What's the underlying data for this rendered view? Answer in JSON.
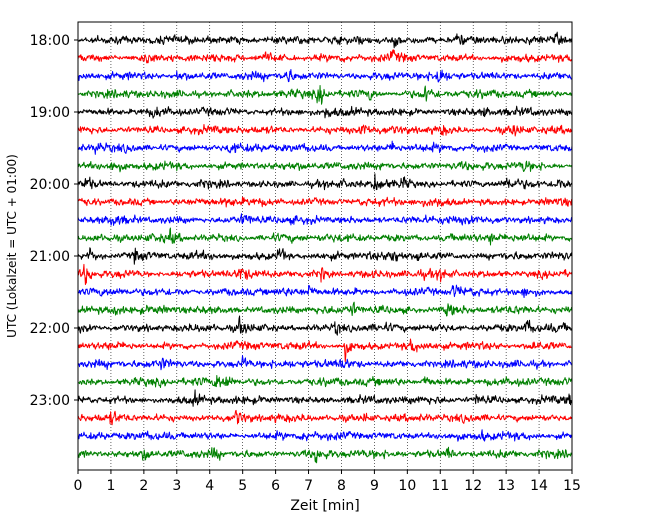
{
  "chart_data": {
    "type": "line",
    "title": "",
    "xlabel": "Zeit  [min]",
    "ylabel": "UTC (Lokalzeit = UTC + 01:00)",
    "xlim": [
      0,
      15
    ],
    "x_ticks": [
      "0",
      "1",
      "2",
      "3",
      "4",
      "5",
      "6",
      "7",
      "8",
      "9",
      "10",
      "11",
      "12",
      "13",
      "14",
      "15"
    ],
    "y_tick_labels": [
      "18:00",
      "19:00",
      "20:00",
      "21:00",
      "22:00",
      "23:00"
    ],
    "grid": "vertical dotted at each minute",
    "legend": "none",
    "trace_colors": [
      "#000000",
      "#ff0000",
      "#0000ff",
      "#008000"
    ],
    "traces_per_hour": 4,
    "minutes_per_trace": 15,
    "series": [
      {
        "start": "18:00",
        "color": "#000000",
        "events": [
          [
            9.6,
            0.5
          ],
          [
            11.5,
            0.4
          ],
          [
            14.5,
            0.4
          ],
          [
            3.5,
            0.35
          ]
        ]
      },
      {
        "start": "18:15",
        "color": "#ff0000",
        "events": [
          [
            2.0,
            0.6
          ],
          [
            5.6,
            0.4
          ],
          [
            9.5,
            0.4
          ]
        ]
      },
      {
        "start": "18:30",
        "color": "#0000ff",
        "events": [
          [
            6.3,
            0.9
          ],
          [
            10.9,
            1.0
          ],
          [
            3.0,
            0.35
          ]
        ]
      },
      {
        "start": "18:45",
        "color": "#008000",
        "events": [
          [
            7.3,
            1.0
          ],
          [
            8.8,
            0.5
          ],
          [
            10.5,
            0.8
          ]
        ]
      },
      {
        "start": "19:00",
        "color": "#000000",
        "events": [
          [
            2.3,
            0.4
          ],
          [
            7.5,
            0.4
          ],
          [
            12.3,
            0.4
          ]
        ]
      },
      {
        "start": "19:15",
        "color": "#ff0000",
        "events": [
          [
            8.6,
            0.6
          ],
          [
            13.2,
            0.5
          ],
          [
            11.0,
            0.4
          ]
        ]
      },
      {
        "start": "19:30",
        "color": "#0000ff",
        "events": [
          [
            0.5,
            0.6
          ],
          [
            4.6,
            0.5
          ],
          [
            9.5,
            0.5
          ]
        ]
      },
      {
        "start": "19:45",
        "color": "#008000",
        "events": [
          [
            1.0,
            0.4
          ],
          [
            9.2,
            0.5
          ],
          [
            13.5,
            0.5
          ]
        ]
      },
      {
        "start": "20:00",
        "color": "#000000",
        "events": [
          [
            0.2,
            0.7
          ],
          [
            9.0,
            0.9
          ],
          [
            13.0,
            0.6
          ],
          [
            14.5,
            0.5
          ],
          [
            9.8,
            0.5
          ]
        ]
      },
      {
        "start": "20:15",
        "color": "#ff0000",
        "events": [
          [
            4.5,
            0.5
          ],
          [
            10.8,
            0.4
          ]
        ]
      },
      {
        "start": "20:30",
        "color": "#0000ff",
        "events": [
          [
            5.0,
            0.5
          ],
          [
            11.2,
            0.4
          ],
          [
            1.0,
            0.35
          ]
        ]
      },
      {
        "start": "20:45",
        "color": "#008000",
        "events": [
          [
            2.8,
            0.5
          ],
          [
            12.5,
            0.5
          ]
        ]
      },
      {
        "start": "21:00",
        "color": "#000000",
        "events": [
          [
            0.3,
            0.6
          ],
          [
            1.7,
            0.6
          ],
          [
            6.1,
            1.0
          ],
          [
            9.5,
            0.7
          ],
          [
            10.3,
            0.6
          ]
        ]
      },
      {
        "start": "21:15",
        "color": "#ff0000",
        "events": [
          [
            0.2,
            0.9
          ],
          [
            4.9,
            0.6
          ],
          [
            7.4,
            0.6
          ],
          [
            11.0,
            0.5
          ]
        ]
      },
      {
        "start": "21:30",
        "color": "#0000ff",
        "events": [
          [
            7.0,
            0.5
          ],
          [
            11.4,
            0.5
          ],
          [
            13.5,
            0.4
          ]
        ]
      },
      {
        "start": "21:45",
        "color": "#008000",
        "events": [
          [
            1.1,
            0.6
          ],
          [
            8.3,
            0.6
          ],
          [
            11.2,
            0.6
          ]
        ]
      },
      {
        "start": "22:00",
        "color": "#000000",
        "events": [
          [
            4.9,
            0.7
          ],
          [
            7.8,
            0.6
          ],
          [
            13.6,
            0.8
          ]
        ]
      },
      {
        "start": "22:15",
        "color": "#ff0000",
        "events": [
          [
            8.1,
            1.0
          ],
          [
            10.1,
            0.5
          ],
          [
            13.8,
            0.5
          ]
        ]
      },
      {
        "start": "22:30",
        "color": "#0000ff",
        "events": [
          [
            5.0,
            0.6
          ],
          [
            2.5,
            0.4
          ],
          [
            8.0,
            0.4
          ]
        ]
      },
      {
        "start": "22:45",
        "color": "#008000",
        "events": [
          [
            4.2,
            0.8
          ],
          [
            4.5,
            0.7
          ],
          [
            10.5,
            0.6
          ]
        ]
      },
      {
        "start": "23:00",
        "color": "#000000",
        "events": [
          [
            3.5,
            0.5
          ],
          [
            12.1,
            0.5
          ],
          [
            14.9,
            0.6
          ]
        ]
      },
      {
        "start": "23:15",
        "color": "#ff0000",
        "events": [
          [
            1.0,
            0.5
          ],
          [
            4.8,
            0.5
          ],
          [
            8.7,
            0.4
          ]
        ]
      },
      {
        "start": "23:30",
        "color": "#0000ff",
        "events": [
          [
            6.8,
            0.6
          ],
          [
            12.2,
            0.5
          ]
        ]
      },
      {
        "start": "23:45",
        "color": "#008000",
        "events": [
          [
            2.0,
            0.6
          ],
          [
            4.1,
            0.6
          ],
          [
            7.2,
            0.8
          ],
          [
            11.2,
            0.5
          ]
        ]
      }
    ]
  }
}
